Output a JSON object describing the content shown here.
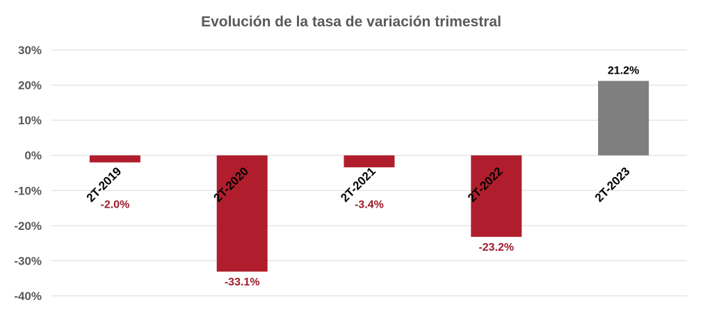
{
  "chart_data": {
    "type": "bar",
    "title": "Evolución de la tasa de variación trimestral",
    "categories": [
      "2T-2019",
      "2T-2020",
      "2T-2021",
      "2T-2022",
      "2T-2023"
    ],
    "values": [
      -2.0,
      -33.1,
      -3.4,
      -23.2,
      21.2
    ],
    "data_labels": [
      "-2.0%",
      "-33.1%",
      "-3.4%",
      "-23.2%",
      "21.2%"
    ],
    "ylim": [
      -40,
      30
    ],
    "yticks": [
      30,
      20,
      10,
      0,
      -10,
      -20,
      -30,
      -40
    ],
    "ytick_labels": [
      "30%",
      "20%",
      "10%",
      "0%",
      "-10%",
      "-20%",
      "-30%",
      "-40%"
    ],
    "grid": true,
    "legend": "none",
    "colors": {
      "negative": "#b01e2d",
      "positive": "#7f7f7f",
      "negative_label": "#9e1b2a",
      "positive_label": "#000000",
      "grid": "#d9d9d9",
      "title": "#595959",
      "axis_text": "#595959",
      "category_text": "#000000"
    }
  }
}
